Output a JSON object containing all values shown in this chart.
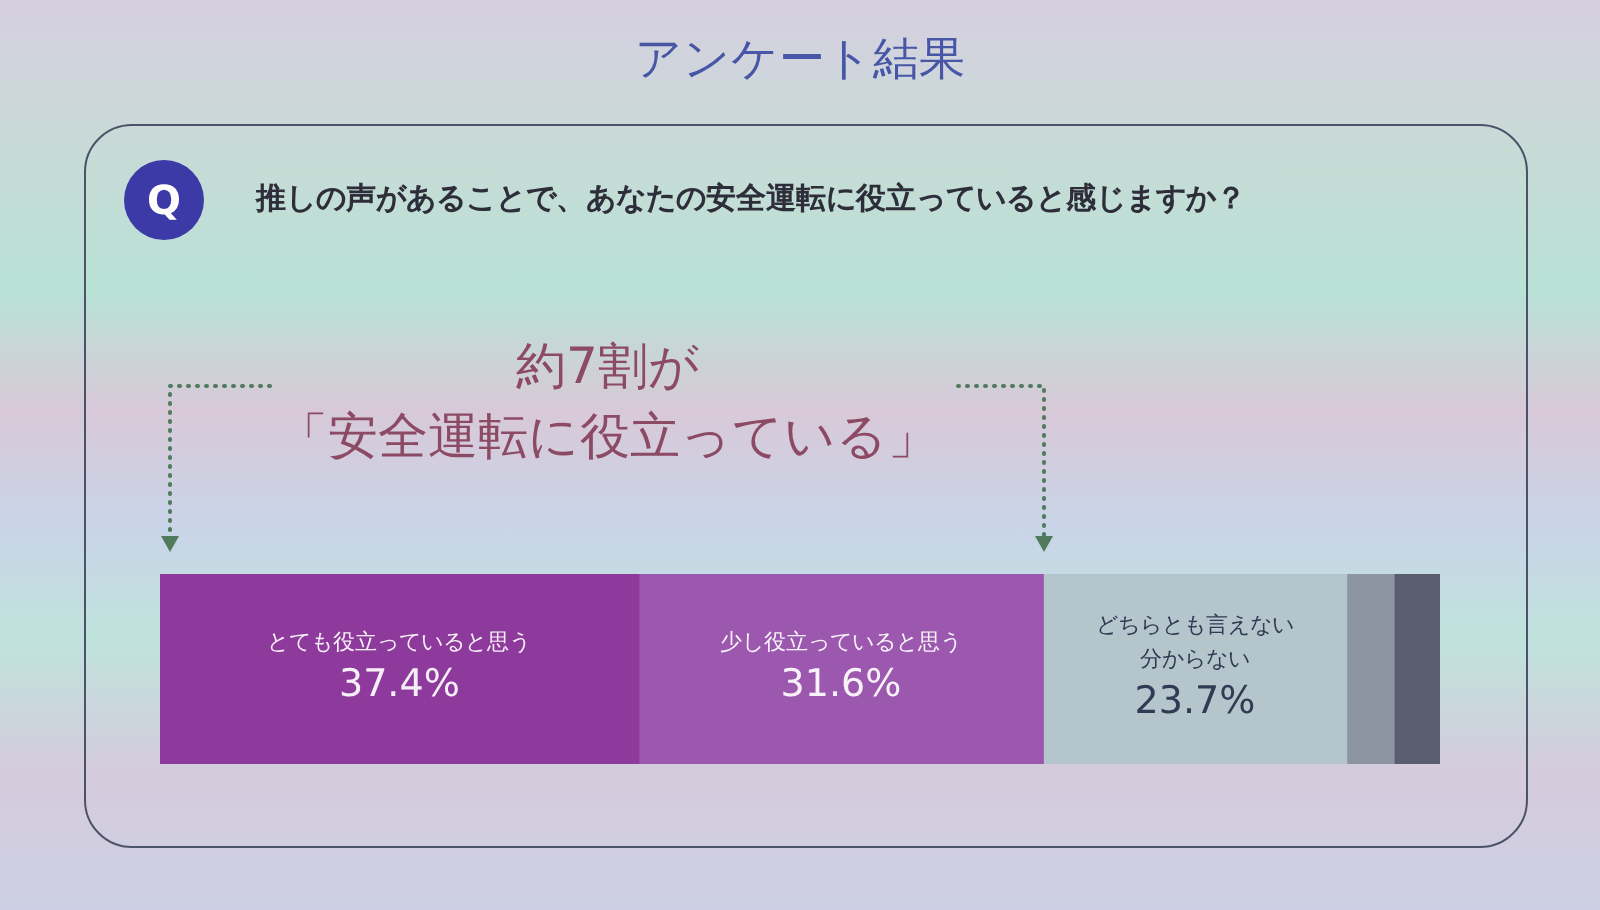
{
  "chart_data": {
    "type": "bar",
    "orientation": "horizontal",
    "stacked": true,
    "title": "アンケート結果",
    "subtitle": "推しの声があることで、あなたの安全運転に役立っていると感じますか？",
    "categories": [
      null
    ],
    "series": [
      {
        "name": "とても役立っていると思う",
        "color": "#8e3a9c",
        "values": [
          37.4
        ],
        "value_labels": [
          "37.4%"
        ]
      },
      {
        "name": "少し役立っていると思う",
        "color": "#9c58ae",
        "values": [
          31.6
        ],
        "value_labels": [
          "31.6%"
        ]
      },
      {
        "name": "どちらとも言えない分からない",
        "color": "#b4c6cc",
        "values": [
          23.7
        ],
        "value_labels": [
          "23.7%"
        ]
      },
      {
        "color": "#8d95a2",
        "values": [
          3.7
        ]
      },
      {
        "color": "#5b5e70",
        "values": [
          3.6
        ]
      }
    ],
    "xlim": [
      0,
      100
    ],
    "tick_labels": false,
    "annotations": [
      "Q",
      "約7割が「安全運転に役立っている」"
    ]
  }
}
